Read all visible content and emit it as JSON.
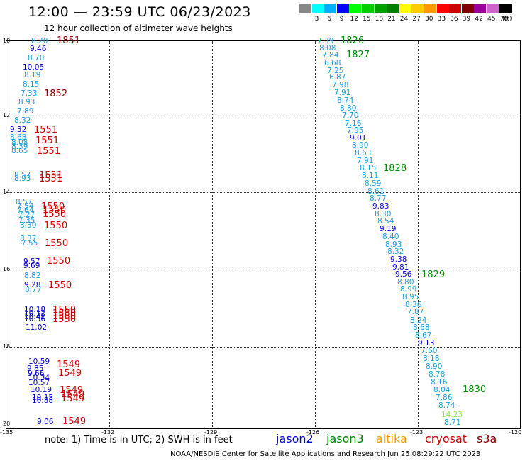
{
  "header": {
    "title": "12:00 — 23:59 UTC 06/23/2023",
    "subtitle": "12 hour collection of altimeter wave heights"
  },
  "colors": {
    "jason2": "#0000d0",
    "jason3": "#008800",
    "altika": "#ff9900",
    "cryosat": "#cc0000",
    "s3a": "#880000",
    "cyan": "#1a9ee0",
    "lime": "#88ee44"
  },
  "scale": {
    "unit": "(ft)",
    "entries": [
      {
        "label": "",
        "color": "#888888"
      },
      {
        "label": "3",
        "color": "#00ffff"
      },
      {
        "label": "6",
        "color": "#00b0ff"
      },
      {
        "label": "9",
        "color": "#0000ff"
      },
      {
        "label": "12",
        "color": "#00ff00"
      },
      {
        "label": "15",
        "color": "#00d000"
      },
      {
        "label": "18",
        "color": "#00a000"
      },
      {
        "label": "21",
        "color": "#008000"
      },
      {
        "label": "24",
        "color": "#ffff00"
      },
      {
        "label": "27",
        "color": "#ffcc00"
      },
      {
        "label": "30",
        "color": "#ff9900"
      },
      {
        "label": "33",
        "color": "#ff0000"
      },
      {
        "label": "36",
        "color": "#cc0000"
      },
      {
        "label": "39",
        "color": "#800000"
      },
      {
        "label": "42",
        "color": "#990099"
      },
      {
        "label": "45",
        "color": "#cc66cc"
      },
      {
        "label": "70",
        "color": "#000000"
      }
    ]
  },
  "axes": {
    "lon_ticks": [
      "-135",
      "-132",
      "-129",
      "-126",
      "-123",
      "-120"
    ],
    "lat_ticks": [
      "10",
      "12",
      "14",
      "16",
      "18",
      "20"
    ]
  },
  "left_values": [
    {
      "t": "8.20",
      "c": "cyan"
    },
    {
      "t": "9.46",
      "c": "jason2"
    },
    {
      "t": "8.70",
      "c": "cyan"
    },
    {
      "t": "10.05",
      "c": "jason2"
    },
    {
      "t": "8.19",
      "c": "cyan"
    },
    {
      "t": "8.15",
      "c": "cyan"
    },
    {
      "t": "7.33",
      "c": "cyan"
    },
    {
      "t": "8.93",
      "c": "cyan"
    },
    {
      "t": "7.89",
      "c": "cyan"
    },
    {
      "t": "8.32",
      "c": "cyan"
    },
    {
      "t": "9.32",
      "c": "jason2"
    },
    {
      "t": "8.68",
      "c": "cyan"
    },
    {
      "t": "8.08",
      "c": "cyan"
    },
    {
      "t": "8.39",
      "c": "cyan"
    },
    {
      "t": "8.65",
      "c": "cyan"
    },
    {
      "t": "8.57",
      "c": "cyan"
    },
    {
      "t": "8.93",
      "c": "cyan"
    },
    {
      "t": "8.57",
      "c": "cyan"
    },
    {
      "t": "7.54",
      "c": "cyan"
    },
    {
      "t": "7.64",
      "c": "cyan"
    },
    {
      "t": "7.27",
      "c": "cyan"
    },
    {
      "t": "7.35",
      "c": "cyan"
    },
    {
      "t": "8.30",
      "c": "cyan"
    },
    {
      "t": "8.37",
      "c": "cyan"
    },
    {
      "t": "7.55",
      "c": "cyan"
    },
    {
      "t": "9.57",
      "c": "jason2"
    },
    {
      "t": "9.69",
      "c": "jason2"
    },
    {
      "t": "8.82",
      "c": "cyan"
    },
    {
      "t": "9.28",
      "c": "jason2"
    },
    {
      "t": "8.77",
      "c": "cyan"
    },
    {
      "t": "10.18",
      "c": "jason2"
    },
    {
      "t": "10.12",
      "c": "jason2"
    },
    {
      "t": "10.42",
      "c": "jason2"
    },
    {
      "t": "10.56",
      "c": "jason2"
    },
    {
      "t": "11.02",
      "c": "jason2"
    },
    {
      "t": "10.59",
      "c": "jason2"
    },
    {
      "t": "9.85",
      "c": "jason2"
    },
    {
      "t": "9.66",
      "c": "jason2"
    },
    {
      "t": "10.34",
      "c": "jason2"
    },
    {
      "t": "10.57",
      "c": "jason2"
    },
    {
      "t": "10.19",
      "c": "jason2"
    },
    {
      "t": "10.15",
      "c": "jason2"
    },
    {
      "t": "10.88",
      "c": "jason2"
    },
    {
      "t": "9.06",
      "c": "jason2"
    }
  ],
  "left_passes": [
    {
      "t": "1851",
      "c": "s3a"
    },
    {
      "t": "1852",
      "c": "s3a"
    },
    {
      "t": "1551",
      "c": "cryosat"
    },
    {
      "t": "1551",
      "c": "cryosat"
    },
    {
      "t": "1551",
      "c": "cryosat"
    },
    {
      "t": "1551",
      "c": "cryosat"
    },
    {
      "t": "1551",
      "c": "cryosat"
    },
    {
      "t": "1550",
      "c": "cryosat"
    },
    {
      "t": "1550",
      "c": "cryosat"
    },
    {
      "t": "1550",
      "c": "cryosat"
    },
    {
      "t": "1550",
      "c": "cryosat"
    },
    {
      "t": "1550",
      "c": "cryosat"
    },
    {
      "t": "1550",
      "c": "cryosat"
    },
    {
      "t": "1550",
      "c": "cryosat"
    },
    {
      "t": "1550",
      "c": "cryosat"
    },
    {
      "t": "1550",
      "c": "cryosat"
    },
    {
      "t": "1550",
      "c": "cryosat"
    },
    {
      "t": "1550",
      "c": "cryosat"
    },
    {
      "t": "1549",
      "c": "cryosat"
    },
    {
      "t": "1549",
      "c": "cryosat"
    },
    {
      "t": "1549",
      "c": "cryosat"
    },
    {
      "t": "1549",
      "c": "cryosat"
    },
    {
      "t": "1549",
      "c": "cryosat"
    },
    {
      "t": "1549",
      "c": "cryosat"
    }
  ],
  "right_values": [
    {
      "t": "7.39",
      "c": "cyan"
    },
    {
      "t": "8.08",
      "c": "cyan"
    },
    {
      "t": "7.84",
      "c": "cyan"
    },
    {
      "t": "6.68",
      "c": "cyan"
    },
    {
      "t": "7.25",
      "c": "cyan"
    },
    {
      "t": "6.87",
      "c": "cyan"
    },
    {
      "t": "7.98",
      "c": "cyan"
    },
    {
      "t": "7.91",
      "c": "cyan"
    },
    {
      "t": "8.74",
      "c": "cyan"
    },
    {
      "t": "8.80",
      "c": "cyan"
    },
    {
      "t": "7.70",
      "c": "cyan"
    },
    {
      "t": "7.16",
      "c": "cyan"
    },
    {
      "t": "7.95",
      "c": "cyan"
    },
    {
      "t": "9.01",
      "c": "jason2"
    },
    {
      "t": "8.90",
      "c": "cyan"
    },
    {
      "t": "8.63",
      "c": "cyan"
    },
    {
      "t": "7.91",
      "c": "cyan"
    },
    {
      "t": "8.15",
      "c": "cyan"
    },
    {
      "t": "8.11",
      "c": "cyan"
    },
    {
      "t": "8.59",
      "c": "cyan"
    },
    {
      "t": "8.61",
      "c": "cyan"
    },
    {
      "t": "8.77",
      "c": "cyan"
    },
    {
      "t": "9.83",
      "c": "jason2"
    },
    {
      "t": "8.30",
      "c": "cyan"
    },
    {
      "t": "8.54",
      "c": "cyan"
    },
    {
      "t": "9.19",
      "c": "jason2"
    },
    {
      "t": "8.40",
      "c": "cyan"
    },
    {
      "t": "8.93",
      "c": "cyan"
    },
    {
      "t": "8.32",
      "c": "cyan"
    },
    {
      "t": "9.38",
      "c": "jason2"
    },
    {
      "t": "9.81",
      "c": "jason2"
    },
    {
      "t": "9.56",
      "c": "jason2"
    },
    {
      "t": "8.80",
      "c": "cyan"
    },
    {
      "t": "8.99",
      "c": "cyan"
    },
    {
      "t": "8.95",
      "c": "cyan"
    },
    {
      "t": "8.36",
      "c": "cyan"
    },
    {
      "t": "7.87",
      "c": "cyan"
    },
    {
      "t": "8.24",
      "c": "cyan"
    },
    {
      "t": "8.68",
      "c": "cyan"
    },
    {
      "t": "8.67",
      "c": "cyan"
    },
    {
      "t": "9.13",
      "c": "jason2"
    },
    {
      "t": "7.60",
      "c": "cyan"
    },
    {
      "t": "8.18",
      "c": "cyan"
    },
    {
      "t": "8.90",
      "c": "cyan"
    },
    {
      "t": "8.78",
      "c": "cyan"
    },
    {
      "t": "8.16",
      "c": "cyan"
    },
    {
      "t": "8.04",
      "c": "cyan"
    },
    {
      "t": "7.86",
      "c": "cyan"
    },
    {
      "t": "8.74",
      "c": "cyan"
    },
    {
      "t": "14.23",
      "c": "lime"
    },
    {
      "t": "8.71",
      "c": "cyan"
    }
  ],
  "right_passes": [
    {
      "t": "1826",
      "c": "jason3"
    },
    {
      "t": "1827",
      "c": "jason3"
    },
    {
      "t": "1828",
      "c": "jason3"
    },
    {
      "t": "1829",
      "c": "jason3"
    },
    {
      "t": "1830",
      "c": "jason3"
    }
  ],
  "footer": {
    "note": "note:  1) Time is in UTC;  2) SWH is in feet",
    "satellites": [
      {
        "t": "jason2",
        "c": "jason2"
      },
      {
        "t": "jason3",
        "c": "jason3"
      },
      {
        "t": "altika",
        "c": "altika"
      },
      {
        "t": "cryosat",
        "c": "cryosat"
      },
      {
        "t": "s3a",
        "c": "s3a"
      }
    ],
    "credit": "NOAA/NESDIS Center for Satellite Applications and Research     Jun 25 08:29:22 UTC 2023"
  }
}
